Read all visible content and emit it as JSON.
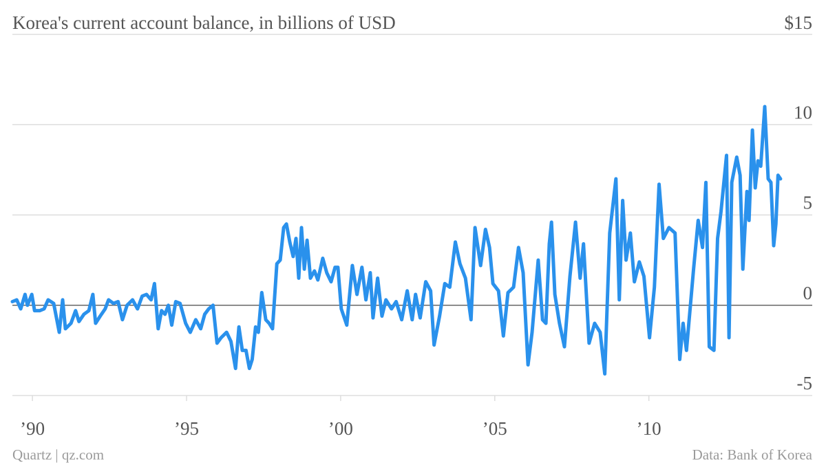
{
  "chart_data": {
    "type": "line",
    "title": "Korea's current account balance, in billions of USD",
    "source": "Data: Bank of Korea",
    "credit": "Quartz | qz.com",
    "xlim": [
      1989.35,
      2015.3
    ],
    "xticks": [
      {
        "value": 1990,
        "label": "’90"
      },
      {
        "value": 1995,
        "label": "’95"
      },
      {
        "value": 2000,
        "label": "’00"
      },
      {
        "value": 2005,
        "label": "’05"
      },
      {
        "value": 2010,
        "label": "’10"
      }
    ],
    "ylim": [
      -5,
      15
    ],
    "yticks": [
      -5,
      0,
      5,
      10,
      {
        "value": 15,
        "label": "$15"
      }
    ],
    "grid": true,
    "x": [
      1989.35,
      1989.49,
      1989.62,
      1989.76,
      1989.84,
      1989.98,
      1990.07,
      1990.24,
      1990.38,
      1990.51,
      1990.69,
      1990.87,
      1990.98,
      1991.07,
      1991.25,
      1991.4,
      1991.51,
      1991.67,
      1991.83,
      1991.96,
      1992.05,
      1992.2,
      1992.36,
      1992.47,
      1992.63,
      1992.78,
      1992.92,
      1993.07,
      1993.25,
      1993.41,
      1993.56,
      1993.7,
      1993.85,
      1993.96,
      1994.08,
      1994.19,
      1994.3,
      1994.41,
      1994.52,
      1994.65,
      1994.79,
      1994.97,
      1995.12,
      1995.3,
      1995.46,
      1995.59,
      1995.72,
      1995.86,
      1995.99,
      1996.12,
      1996.3,
      1996.44,
      1996.59,
      1996.7,
      1996.81,
      1996.93,
      1997.04,
      1997.13,
      1997.24,
      1997.33,
      1997.44,
      1997.57,
      1997.68,
      1997.79,
      1997.93,
      1998.04,
      1998.15,
      1998.24,
      1998.35,
      1998.46,
      1998.55,
      1998.64,
      1998.73,
      1998.82,
      1998.91,
      1999.02,
      1999.15,
      1999.26,
      1999.42,
      1999.55,
      1999.69,
      1999.82,
      1999.91,
      2000.02,
      2000.2,
      2000.38,
      2000.53,
      2000.69,
      2000.82,
      2000.96,
      2001.05,
      2001.2,
      2001.34,
      2001.47,
      2001.65,
      2001.8,
      2001.98,
      2002.16,
      2002.32,
      2002.43,
      2002.58,
      2002.76,
      2002.92,
      2003.03,
      2003.21,
      2003.38,
      2003.54,
      2003.72,
      2003.87,
      2004.05,
      2004.23,
      2004.36,
      2004.54,
      2004.7,
      2004.83,
      2004.94,
      2005.12,
      2005.28,
      2005.43,
      2005.61,
      2005.77,
      2005.92,
      2006.08,
      2006.21,
      2006.41,
      2006.55,
      2006.66,
      2006.77,
      2006.84,
      2006.95,
      2007.1,
      2007.26,
      2007.44,
      2007.62,
      2007.77,
      2007.88,
      2008.06,
      2008.24,
      2008.42,
      2008.57,
      2008.73,
      2008.93,
      2009.04,
      2009.15,
      2009.26,
      2009.4,
      2009.53,
      2009.69,
      2009.84,
      2010.02,
      2010.18,
      2010.33,
      2010.47,
      2010.65,
      2010.85,
      2011.0,
      2011.11,
      2011.22,
      2011.45,
      2011.6,
      2011.74,
      2011.85,
      2011.96,
      2012.11,
      2012.23,
      2012.34,
      2012.52,
      2012.6,
      2012.69,
      2012.85,
      2012.96,
      2013.05,
      2013.18,
      2013.25,
      2013.36,
      2013.45,
      2013.54,
      2013.63,
      2013.76,
      2013.87,
      2013.96,
      2014.05,
      2014.12,
      2014.19,
      2014.27
    ],
    "series": [
      {
        "color": "#2a91ec",
        "values": [
          0.2,
          0.3,
          -0.2,
          0.6,
          0.0,
          0.6,
          -0.3,
          -0.3,
          -0.2,
          0.3,
          0.1,
          -1.5,
          0.3,
          -1.3,
          -1.0,
          -0.3,
          -0.9,
          -0.5,
          -0.3,
          0.6,
          -1.0,
          -0.6,
          -0.2,
          0.3,
          0.1,
          0.2,
          -0.8,
          0.0,
          0.3,
          -0.2,
          0.5,
          0.6,
          0.3,
          1.2,
          -1.3,
          -0.3,
          -0.5,
          0.0,
          -1.1,
          0.2,
          0.1,
          -1.0,
          -1.5,
          -0.8,
          -1.3,
          -0.5,
          -0.2,
          0.0,
          -2.1,
          -1.8,
          -1.5,
          -2.0,
          -3.5,
          -1.2,
          -2.5,
          -2.5,
          -3.5,
          -3.0,
          -1.2,
          -1.5,
          0.7,
          -0.8,
          -1.0,
          -1.3,
          2.3,
          2.5,
          4.3,
          4.5,
          3.5,
          2.7,
          3.7,
          1.5,
          4.3,
          2.0,
          3.6,
          1.5,
          1.9,
          1.4,
          2.6,
          1.8,
          1.3,
          2.1,
          2.1,
          -0.2,
          -1.1,
          2.2,
          0.6,
          2.1,
          0.3,
          1.8,
          -0.7,
          1.5,
          -0.6,
          0.3,
          -0.2,
          0.2,
          -0.8,
          0.8,
          -0.8,
          0.6,
          -0.7,
          1.3,
          0.8,
          -2.2,
          -0.6,
          1.2,
          1.0,
          3.5,
          2.3,
          1.5,
          -0.8,
          4.3,
          2.2,
          4.2,
          3.2,
          1.2,
          0.8,
          -1.7,
          0.7,
          1.0,
          3.2,
          1.8,
          -3.3,
          -1.5,
          2.5,
          -0.8,
          -1.0,
          3.4,
          4.6,
          0.6,
          -1.0,
          -2.3,
          1.6,
          4.6,
          1.5,
          3.4,
          -2.1,
          -1.0,
          -1.5,
          -3.8,
          4.0,
          7.0,
          0.3,
          5.8,
          2.5,
          4.0,
          1.3,
          2.4,
          1.6,
          -1.8,
          1.0,
          6.7,
          3.7,
          4.3,
          4.0,
          -3.0,
          -1.0,
          -2.5,
          2.0,
          4.7,
          3.2,
          6.8,
          -2.3,
          -2.5,
          3.7,
          5.2,
          8.3,
          -1.8,
          6.8,
          8.2,
          7.2,
          2.0,
          6.3,
          4.7,
          9.7,
          6.5,
          8.0,
          7.7,
          11.0,
          7.0,
          6.8,
          3.3,
          4.5,
          7.2,
          7.0
        ]
      }
    ]
  }
}
